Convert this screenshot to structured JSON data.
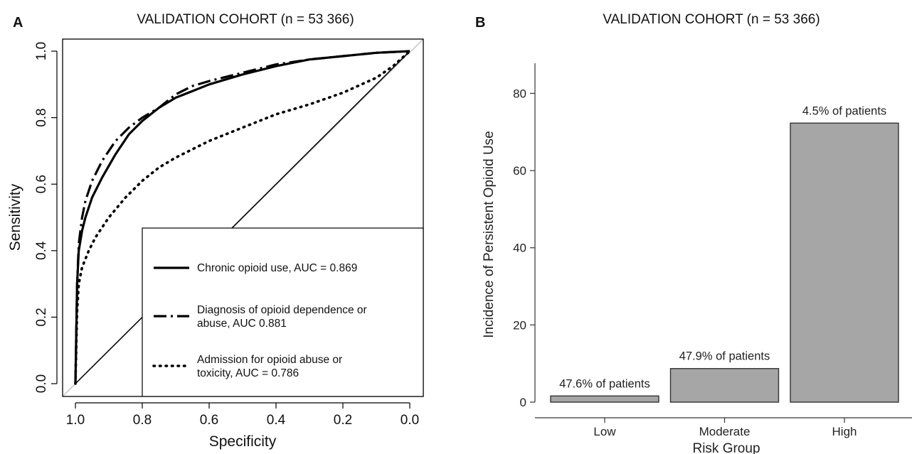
{
  "panels": {
    "a": {
      "letter": "A",
      "title": "VALIDATION COHORT (n = 53 366)"
    },
    "b": {
      "letter": "B",
      "title": "VALIDATION COHORT (n = 53 366)"
    }
  },
  "chart_data": [
    {
      "type": "line",
      "panel": "A",
      "title": "VALIDATION COHORT (n = 53 366)",
      "xlabel": "Specificity",
      "ylabel": "Sensitivity",
      "xlim": [
        1.0,
        0.0
      ],
      "ylim": [
        0.0,
        1.0
      ],
      "x_reversed": true,
      "xticks": [
        "1.0",
        "0.8",
        "0.6",
        "0.4",
        "0.2",
        "0.0"
      ],
      "yticks": [
        "0.0",
        "0.2",
        "0.4",
        "0.6",
        "0.8",
        "1.0"
      ],
      "legend_position": "bottom-right",
      "reference_line": {
        "from": [
          1.0,
          0.0
        ],
        "to": [
          0.0,
          1.0
        ]
      },
      "series": [
        {
          "name": "Chronic opioid use, AUC = 0.869",
          "style": "solid",
          "points": [
            [
              1.0,
              0.0
            ],
            [
              0.995,
              0.3
            ],
            [
              0.99,
              0.4
            ],
            [
              0.98,
              0.46
            ],
            [
              0.97,
              0.5
            ],
            [
              0.95,
              0.56
            ],
            [
              0.92,
              0.62
            ],
            [
              0.88,
              0.69
            ],
            [
              0.84,
              0.75
            ],
            [
              0.8,
              0.79
            ],
            [
              0.75,
              0.83
            ],
            [
              0.7,
              0.86
            ],
            [
              0.65,
              0.88
            ],
            [
              0.6,
              0.9
            ],
            [
              0.5,
              0.93
            ],
            [
              0.4,
              0.955
            ],
            [
              0.3,
              0.975
            ],
            [
              0.2,
              0.985
            ],
            [
              0.1,
              0.995
            ],
            [
              0.0,
              1.0
            ]
          ]
        },
        {
          "name": "Diagnosis of opioid dependence or abuse, AUC 0.881",
          "style": "dashed",
          "points": [
            [
              1.0,
              0.0
            ],
            [
              0.995,
              0.3
            ],
            [
              0.99,
              0.42
            ],
            [
              0.98,
              0.5
            ],
            [
              0.97,
              0.55
            ],
            [
              0.95,
              0.61
            ],
            [
              0.92,
              0.67
            ],
            [
              0.88,
              0.73
            ],
            [
              0.84,
              0.77
            ],
            [
              0.8,
              0.8
            ],
            [
              0.75,
              0.83
            ],
            [
              0.7,
              0.87
            ],
            [
              0.65,
              0.895
            ],
            [
              0.6,
              0.91
            ],
            [
              0.5,
              0.935
            ],
            [
              0.4,
              0.96
            ],
            [
              0.3,
              0.975
            ],
            [
              0.2,
              0.985
            ],
            [
              0.1,
              0.995
            ],
            [
              0.0,
              1.0
            ]
          ]
        },
        {
          "name": "Admission for opioid abuse or toxicity, AUC = 0.786",
          "style": "dotted",
          "points": [
            [
              1.0,
              0.0
            ],
            [
              0.995,
              0.22
            ],
            [
              0.99,
              0.3
            ],
            [
              0.98,
              0.35
            ],
            [
              0.96,
              0.4
            ],
            [
              0.94,
              0.44
            ],
            [
              0.9,
              0.5
            ],
            [
              0.85,
              0.56
            ],
            [
              0.8,
              0.61
            ],
            [
              0.75,
              0.65
            ],
            [
              0.7,
              0.68
            ],
            [
              0.6,
              0.73
            ],
            [
              0.5,
              0.77
            ],
            [
              0.4,
              0.81
            ],
            [
              0.3,
              0.84
            ],
            [
              0.2,
              0.875
            ],
            [
              0.1,
              0.92
            ],
            [
              0.05,
              0.955
            ],
            [
              0.0,
              1.0
            ]
          ]
        }
      ]
    },
    {
      "type": "bar",
      "panel": "B",
      "title": "VALIDATION COHORT (n = 53 366)",
      "xlabel": "Risk Group",
      "ylabel": "Incidence of Persistent Opioid Use",
      "categories": [
        "Low",
        "Moderate",
        "High"
      ],
      "values": [
        1.6,
        8.7,
        72.3
      ],
      "bar_labels": [
        "47.6% of patients",
        "47.9% of patients",
        "4.5% of patients"
      ],
      "ylim": [
        0,
        88
      ],
      "yticks": [
        "0",
        "20",
        "40",
        "60",
        "80"
      ],
      "grid": false,
      "colors": {
        "bar_fill": "#a6a6a6",
        "bar_stroke": "#333333"
      }
    }
  ]
}
